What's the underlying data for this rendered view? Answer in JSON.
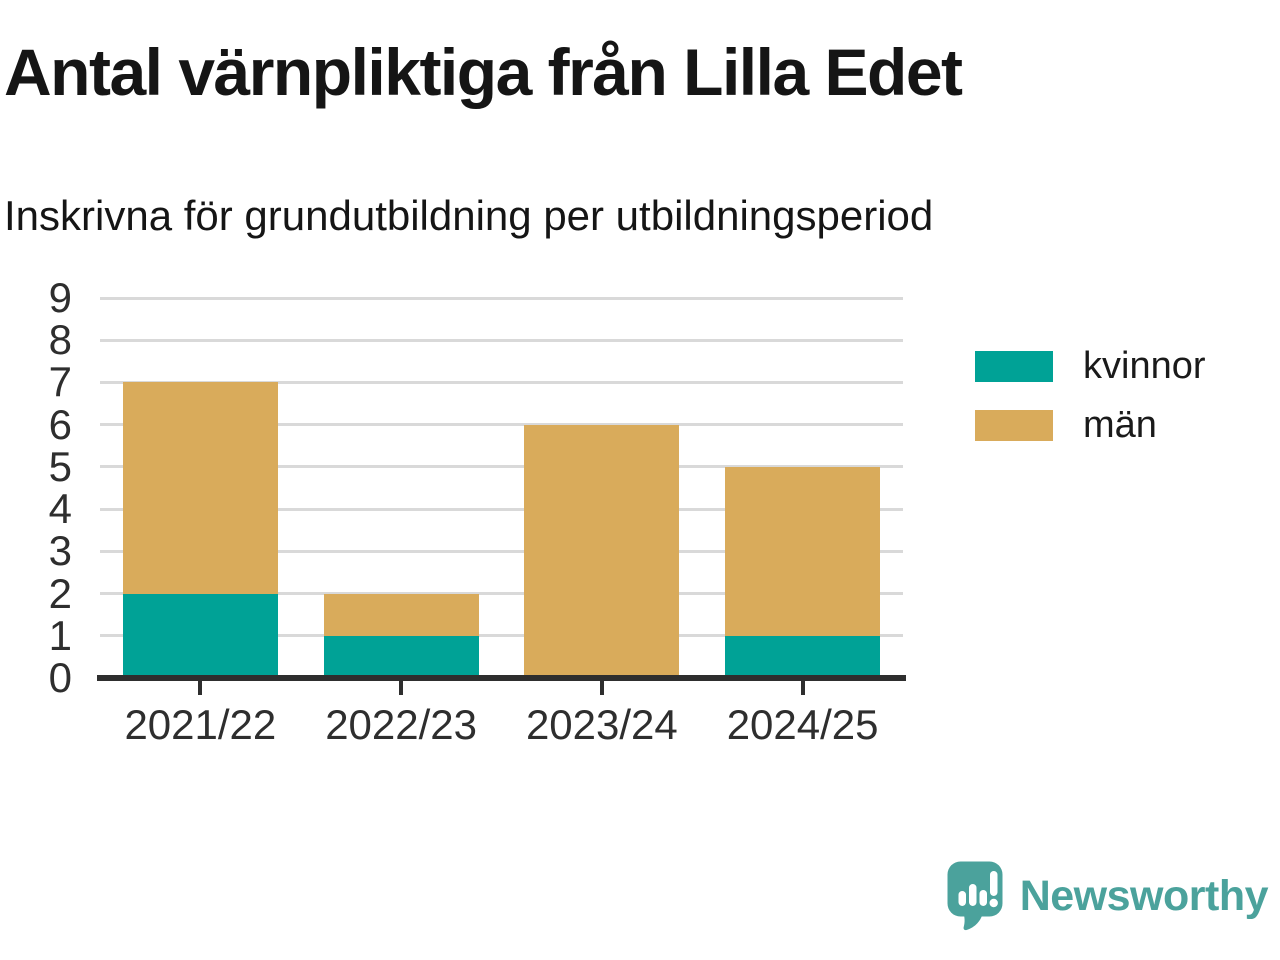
{
  "chart_data": {
    "type": "bar",
    "stacked": true,
    "title": "Antal värnpliktiga från Lilla Edet",
    "subtitle": "Inskrivna för grundutbildning per utbildningsperiod",
    "categories": [
      "2021/22",
      "2022/23",
      "2023/24",
      "2024/25"
    ],
    "series": [
      {
        "name": "kvinnor",
        "color": "#00A296",
        "values": [
          2,
          1,
          0,
          1
        ]
      },
      {
        "name": "män",
        "color": "#D9AB5B",
        "values": [
          5,
          1,
          6,
          4
        ]
      }
    ],
    "totals": [
      7,
      2,
      6,
      5
    ],
    "xlabel": "",
    "ylabel": "",
    "ylim": [
      0,
      9
    ],
    "yticks": [
      0,
      1,
      2,
      3,
      4,
      5,
      6,
      7,
      8,
      9
    ],
    "grid": true,
    "legend_position": "right"
  },
  "colors": {
    "background": "#FFFFFF",
    "grid": "#D9D9D9",
    "axis": "#2E2E2E",
    "text": "#151515"
  },
  "branding": {
    "logo_text": "Newsworthy",
    "logo_color": "#4BA29C",
    "logo_icon": "bar-chart-speech-bubble-icon"
  }
}
